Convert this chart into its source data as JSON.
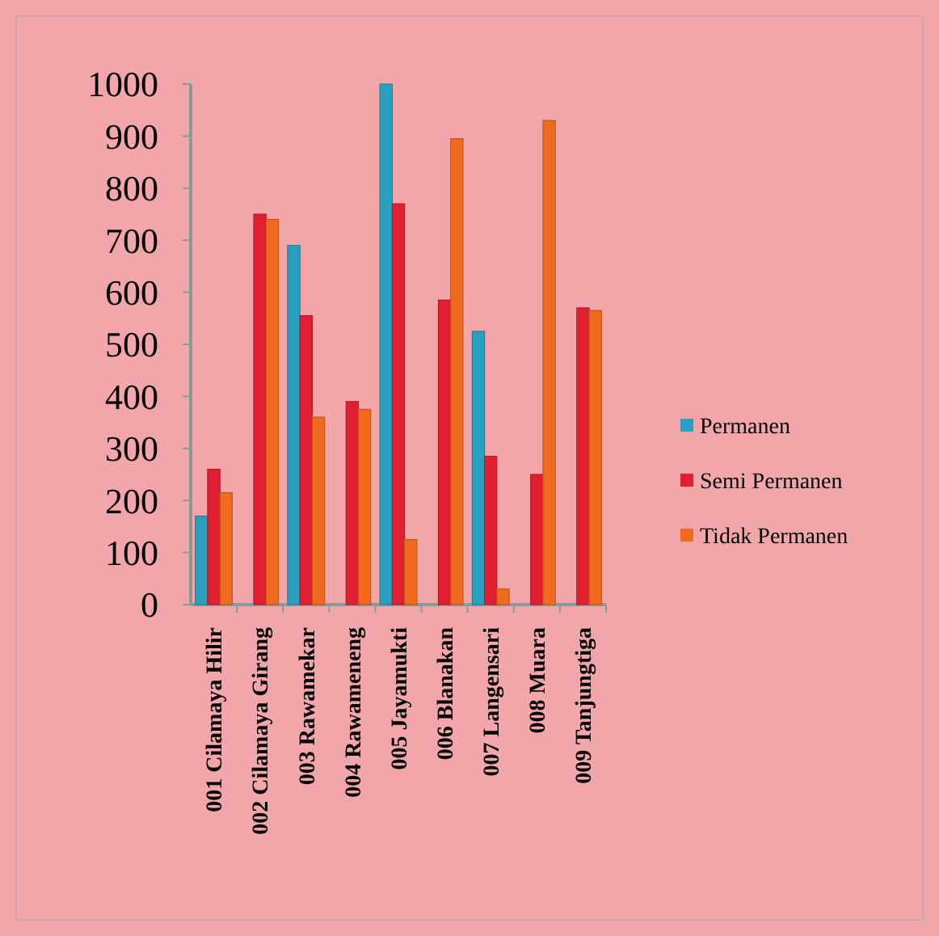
{
  "chart_data": {
    "type": "bar",
    "categories": [
      "001 Cilamaya Hilir",
      "002 Cilamaya Girang",
      "003 Rawamekar",
      "004 Rawameneng",
      "005 Jayamukti",
      "006 Blanakan",
      "007 Langensari",
      "008 Muara",
      "009 Tanjungtiga"
    ],
    "series": [
      {
        "name": "Permanen",
        "color": "#2aa0c0",
        "values": [
          170,
          0,
          690,
          0,
          1000,
          0,
          525,
          0,
          0
        ]
      },
      {
        "name": "Semi Permanen",
        "color": "#e02030",
        "values": [
          260,
          750,
          555,
          390,
          770,
          585,
          285,
          250,
          570
        ]
      },
      {
        "name": "Tidak Permanen",
        "color": "#f06a20",
        "values": [
          215,
          740,
          360,
          375,
          125,
          895,
          30,
          930,
          565
        ]
      }
    ],
    "ylim": [
      0,
      1000
    ],
    "yticks": [
      0,
      100,
      200,
      300,
      400,
      500,
      600,
      700,
      800,
      900,
      1000
    ],
    "grid": false,
    "legend": "right"
  }
}
